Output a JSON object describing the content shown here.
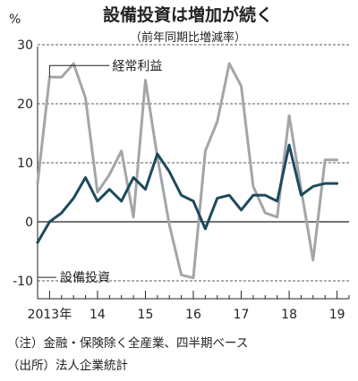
{
  "chart_data": {
    "type": "line",
    "title": "設備投資は増加が続く",
    "subtitle": "（前年同期比増減率）",
    "ylabel": "%",
    "ylim": [
      -13,
      30
    ],
    "yticks": [
      30,
      20,
      10,
      0,
      -10
    ],
    "ytick_labels": [
      "30",
      "20",
      "10",
      "0",
      "-10"
    ],
    "xlim": [
      2013.0,
      2019.25
    ],
    "xticks": [
      {
        "x": 2013.0,
        "label": "2013年"
      },
      {
        "x": 2014.0,
        "label": "14"
      },
      {
        "x": 2015.0,
        "label": "15"
      },
      {
        "x": 2016.0,
        "label": "16"
      },
      {
        "x": 2017.0,
        "label": "17"
      },
      {
        "x": 2018.0,
        "label": "18"
      },
      {
        "x": 2019.0,
        "label": "19"
      }
    ],
    "x_period": "quarterly",
    "series": [
      {
        "name": "経常利益",
        "color": "#a3a6a9",
        "x": [
          2012.75,
          2013.0,
          2013.25,
          2013.5,
          2013.75,
          2014.0,
          2014.25,
          2014.5,
          2014.75,
          2015.0,
          2015.25,
          2015.5,
          2015.75,
          2016.0,
          2016.25,
          2016.5,
          2016.75,
          2017.0,
          2017.25,
          2017.5,
          2017.75,
          2018.0,
          2018.25,
          2018.5,
          2018.75,
          2019.0
        ],
        "values": [
          6.5,
          24.5,
          24.5,
          26.8,
          21.0,
          5.0,
          8.0,
          12.0,
          0.8,
          24.0,
          11.0,
          -0.5,
          -9.0,
          -9.5,
          12.0,
          17.0,
          26.8,
          23.0,
          6.0,
          1.5,
          0.8,
          18.0,
          5.5,
          -6.5,
          10.5,
          10.5
        ]
      },
      {
        "name": "設備投資",
        "color": "#1d4a5c",
        "x": [
          2012.75,
          2013.0,
          2013.25,
          2013.5,
          2013.75,
          2014.0,
          2014.25,
          2014.5,
          2014.75,
          2015.0,
          2015.25,
          2015.5,
          2015.75,
          2016.0,
          2016.25,
          2016.5,
          2016.75,
          2017.0,
          2017.25,
          2017.5,
          2017.75,
          2018.0,
          2018.25,
          2018.5,
          2018.75,
          2019.0
        ],
        "values": [
          -3.5,
          0.0,
          1.5,
          4.0,
          7.5,
          3.5,
          5.5,
          3.5,
          7.5,
          5.5,
          11.5,
          8.5,
          4.5,
          3.5,
          -1.2,
          4.0,
          4.5,
          2.0,
          4.5,
          4.5,
          3.5,
          13.0,
          4.5,
          6.0,
          6.5,
          6.5
        ]
      }
    ],
    "annotations": [
      {
        "text": "経常利益",
        "series": "経常利益"
      },
      {
        "text": "設備投資",
        "series": "設備投資"
      }
    ],
    "notes": [
      "（注）金融・保険除く全産業、四半期ベース",
      "（出所）法人企業統計"
    ]
  }
}
